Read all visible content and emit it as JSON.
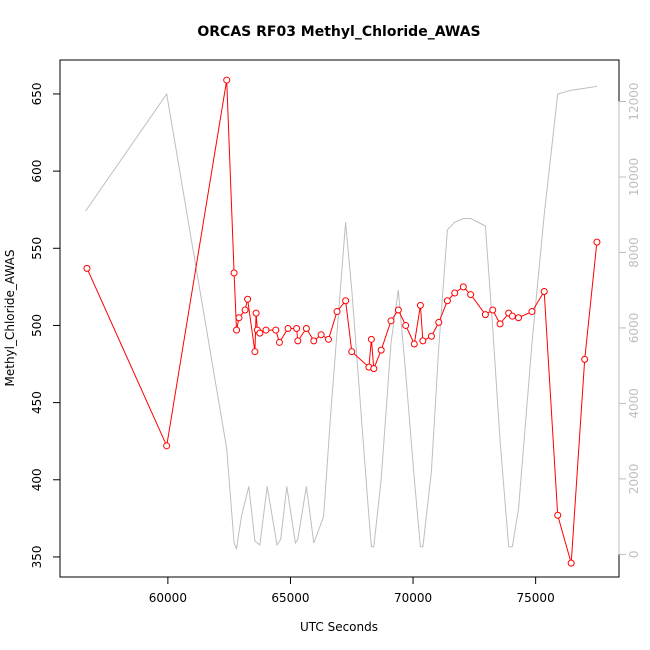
{
  "chart_data": {
    "type": "line",
    "title": "ORCAS RF03 Methyl_Chloride_AWAS",
    "xlabel": "UTC Seconds",
    "ylabel": "Methyl_Chloride_AWAS",
    "xlim": [
      55600,
      78400
    ],
    "ylim": [
      337,
      672
    ],
    "y2lim": [
      -600,
      13100
    ],
    "x_ticks": [
      60000,
      65000,
      70000,
      75000
    ],
    "y_ticks": [
      350,
      400,
      450,
      500,
      550,
      600,
      650
    ],
    "y2_ticks": [
      0,
      2000,
      4000,
      6000,
      8000,
      10000,
      12000
    ],
    "colors": {
      "primary": "#ff0000",
      "secondary": "#bebebe",
      "axis": "#000000"
    },
    "series": [
      {
        "axis": "left",
        "style": "line+points",
        "color": "#ff0000",
        "points": [
          [
            56700,
            537
          ],
          [
            59950,
            422
          ],
          [
            62400,
            659
          ],
          [
            62700,
            534
          ],
          [
            62800,
            497
          ],
          [
            62900,
            505
          ],
          [
            63150,
            510
          ],
          [
            63250,
            517
          ],
          [
            63550,
            483
          ],
          [
            63600,
            508
          ],
          [
            63650,
            497
          ],
          [
            63750,
            495
          ],
          [
            64000,
            497
          ],
          [
            64400,
            497
          ],
          [
            64550,
            489
          ],
          [
            64900,
            498
          ],
          [
            65250,
            498
          ],
          [
            65300,
            490
          ],
          [
            65650,
            498
          ],
          [
            65950,
            490
          ],
          [
            66250,
            494
          ],
          [
            66550,
            491
          ],
          [
            66900,
            509
          ],
          [
            67250,
            516
          ],
          [
            67500,
            483
          ],
          [
            68200,
            473
          ],
          [
            68300,
            491
          ],
          [
            68400,
            472
          ],
          [
            68700,
            484
          ],
          [
            69100,
            503
          ],
          [
            69400,
            510
          ],
          [
            69700,
            500
          ],
          [
            70050,
            488
          ],
          [
            70300,
            513
          ],
          [
            70400,
            490
          ],
          [
            70750,
            493
          ],
          [
            71050,
            502
          ],
          [
            71400,
            516
          ],
          [
            71700,
            521
          ],
          [
            72050,
            525
          ],
          [
            72350,
            520
          ],
          [
            72950,
            507
          ],
          [
            73250,
            510
          ],
          [
            73550,
            501
          ],
          [
            73900,
            508
          ],
          [
            74050,
            506
          ],
          [
            74300,
            505
          ],
          [
            74850,
            509
          ],
          [
            75350,
            522
          ],
          [
            75900,
            377
          ],
          [
            76450,
            346
          ],
          [
            77000,
            478
          ],
          [
            77500,
            554
          ]
        ]
      },
      {
        "axis": "right",
        "style": "line",
        "color": "#bebebe",
        "points": [
          [
            56650,
            9100
          ],
          [
            59950,
            12200
          ],
          [
            62400,
            2800
          ],
          [
            62700,
            300
          ],
          [
            62800,
            150
          ],
          [
            63000,
            1000
          ],
          [
            63300,
            1800
          ],
          [
            63550,
            350
          ],
          [
            63750,
            250
          ],
          [
            64050,
            1800
          ],
          [
            64450,
            250
          ],
          [
            64600,
            400
          ],
          [
            64850,
            1800
          ],
          [
            65200,
            300
          ],
          [
            65300,
            400
          ],
          [
            65650,
            1800
          ],
          [
            65950,
            300
          ],
          [
            66350,
            1000
          ],
          [
            66650,
            3800
          ],
          [
            67250,
            8800
          ],
          [
            67500,
            7000
          ],
          [
            68200,
            1000
          ],
          [
            68300,
            200
          ],
          [
            68400,
            200
          ],
          [
            68700,
            2000
          ],
          [
            69100,
            5600
          ],
          [
            69400,
            7000
          ],
          [
            69700,
            4800
          ],
          [
            70050,
            2000
          ],
          [
            70300,
            200
          ],
          [
            70400,
            200
          ],
          [
            70750,
            2200
          ],
          [
            71050,
            5500
          ],
          [
            71400,
            8600
          ],
          [
            71700,
            8800
          ],
          [
            72050,
            8900
          ],
          [
            72350,
            8900
          ],
          [
            72950,
            8700
          ],
          [
            73250,
            6000
          ],
          [
            73550,
            3000
          ],
          [
            73900,
            200
          ],
          [
            74050,
            200
          ],
          [
            74300,
            1200
          ],
          [
            74850,
            5600
          ],
          [
            75350,
            9000
          ],
          [
            75900,
            12200
          ],
          [
            76450,
            12300
          ],
          [
            77000,
            12350
          ],
          [
            77500,
            12400
          ]
        ]
      }
    ]
  }
}
